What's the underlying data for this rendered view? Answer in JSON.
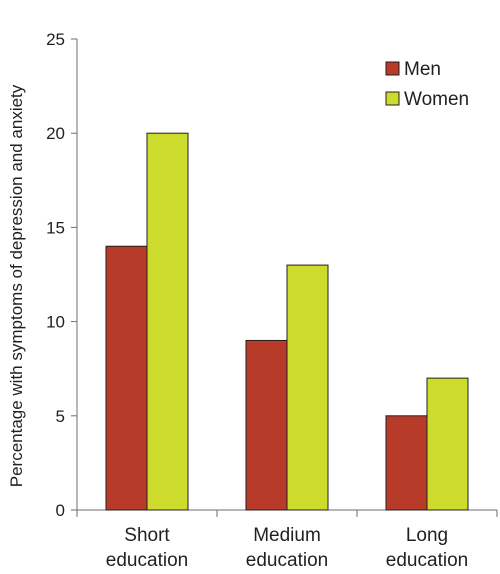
{
  "chart_data": {
    "type": "bar",
    "title": "",
    "xlabel": "",
    "ylabel": "Percentage with symptoms of depression and anxiety",
    "ylim": [
      0,
      25
    ],
    "yticks": [
      0,
      5,
      10,
      15,
      20,
      25
    ],
    "grid": false,
    "legend_position": "top-right",
    "categories": [
      [
        "Short",
        "education"
      ],
      [
        "Medium",
        "education"
      ],
      [
        "Long",
        "education"
      ]
    ],
    "series": [
      {
        "name": "Men",
        "color": "#b83a28",
        "values": [
          14,
          9,
          5
        ]
      },
      {
        "name": "Women",
        "color": "#cddb2d",
        "values": [
          20,
          13,
          7
        ]
      }
    ]
  }
}
